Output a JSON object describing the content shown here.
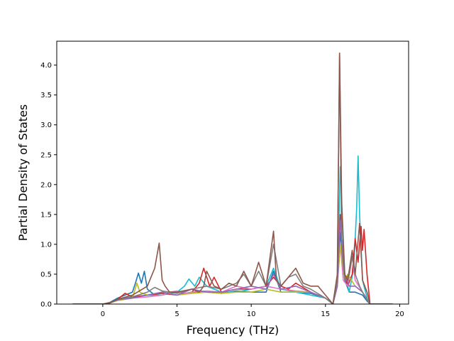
{
  "chart_data": {
    "type": "line",
    "title": "",
    "xlabel": "Frequency (THz)",
    "ylabel": "Partial Density of States",
    "xlim": [
      -3.1,
      20.6
    ],
    "ylim": [
      0.0,
      4.4
    ],
    "xticks": [
      0,
      5,
      10,
      15,
      20
    ],
    "xtick_labels": [
      "0",
      "5",
      "10",
      "15",
      "20"
    ],
    "yticks": [
      0.0,
      0.5,
      1.0,
      1.5,
      2.0,
      2.5,
      3.0,
      3.5,
      4.0
    ],
    "ytick_labels": [
      "0.0",
      "0.5",
      "1.0",
      "1.5",
      "2.0",
      "2.5",
      "3.0",
      "3.5",
      "4.0"
    ],
    "grid": false,
    "legend": "none",
    "series": [
      {
        "color": "#1f77b4",
        "x": [
          -2.0,
          0.0,
          0.5,
          1.0,
          1.5,
          2.0,
          2.2,
          2.4,
          2.6,
          2.8,
          3.0,
          3.5,
          4.0,
          5.0,
          6.0,
          7.0,
          8.0,
          9.0,
          10.0,
          11.0,
          11.5,
          12.0,
          13.0,
          14.0,
          15.0,
          15.5,
          15.8,
          16.0,
          16.3,
          16.6,
          17.0,
          17.5,
          17.8,
          18.0,
          19.5
        ],
        "y": [
          0.0,
          0.0,
          0.03,
          0.1,
          0.15,
          0.2,
          0.35,
          0.52,
          0.35,
          0.55,
          0.25,
          0.15,
          0.2,
          0.15,
          0.2,
          0.2,
          0.18,
          0.22,
          0.2,
          0.2,
          0.55,
          0.2,
          0.2,
          0.18,
          0.1,
          0.0,
          0.3,
          1.2,
          0.4,
          0.2,
          0.2,
          0.15,
          0.05,
          0.0,
          0.0
        ]
      },
      {
        "color": "#17becf",
        "x": [
          -2.0,
          0.0,
          0.5,
          1.0,
          2.0,
          3.0,
          4.0,
          5.0,
          5.5,
          5.8,
          6.2,
          6.5,
          7.0,
          8.0,
          9.0,
          10.0,
          11.0,
          11.5,
          12.0,
          13.0,
          14.0,
          15.0,
          15.5,
          15.8,
          16.0,
          16.3,
          16.6,
          16.9,
          17.1,
          17.2,
          17.3,
          17.5,
          17.8,
          18.0,
          19.5
        ],
        "y": [
          0.0,
          0.0,
          0.02,
          0.08,
          0.12,
          0.15,
          0.15,
          0.2,
          0.3,
          0.42,
          0.3,
          0.45,
          0.3,
          0.2,
          0.2,
          0.25,
          0.3,
          0.6,
          0.25,
          0.2,
          0.15,
          0.1,
          0.0,
          0.3,
          2.3,
          0.5,
          0.2,
          0.6,
          1.6,
          2.48,
          1.5,
          0.4,
          0.1,
          0.0,
          0.0
        ]
      },
      {
        "color": "#d62728",
        "x": [
          -2.0,
          0.0,
          0.5,
          1.0,
          1.5,
          2.0,
          3.0,
          4.0,
          5.0,
          6.0,
          6.5,
          6.8,
          7.2,
          7.5,
          8.0,
          9.0,
          10.0,
          11.0,
          11.5,
          12.0,
          12.5,
          13.0,
          14.0,
          15.0,
          15.5,
          15.8,
          16.0,
          16.2,
          16.5,
          16.8,
          17.0,
          17.2,
          17.4,
          17.5,
          17.6,
          17.8,
          18.0,
          19.5
        ],
        "y": [
          0.0,
          0.0,
          0.02,
          0.08,
          0.18,
          0.12,
          0.15,
          0.18,
          0.15,
          0.2,
          0.35,
          0.6,
          0.3,
          0.45,
          0.2,
          0.25,
          0.25,
          0.3,
          0.45,
          0.3,
          0.25,
          0.35,
          0.2,
          0.1,
          0.0,
          0.4,
          1.5,
          0.6,
          0.3,
          0.5,
          1.1,
          0.7,
          1.3,
          0.9,
          1.25,
          0.5,
          0.0,
          0.0
        ]
      },
      {
        "color": "#e377c2",
        "x": [
          -2.0,
          0.0,
          0.5,
          1.0,
          2.0,
          3.0,
          4.0,
          4.5,
          5.0,
          5.5,
          6.0,
          7.0,
          8.0,
          9.0,
          10.0,
          11.0,
          12.0,
          13.0,
          14.0,
          15.0,
          15.5,
          15.8,
          16.0,
          16.2,
          16.5,
          16.8,
          17.0,
          17.5,
          18.0,
          19.5
        ],
        "y": [
          0.0,
          0.0,
          0.02,
          0.06,
          0.1,
          0.12,
          0.15,
          0.2,
          0.22,
          0.18,
          0.2,
          0.22,
          0.2,
          0.3,
          0.25,
          0.3,
          0.25,
          0.22,
          0.2,
          0.1,
          0.0,
          0.3,
          1.0,
          0.4,
          0.3,
          0.8,
          0.4,
          0.2,
          0.0,
          0.0
        ]
      },
      {
        "color": "#bcbd22",
        "x": [
          -2.0,
          0.0,
          0.5,
          1.0,
          2.0,
          2.3,
          2.5,
          3.0,
          4.0,
          5.0,
          6.0,
          7.0,
          8.0,
          9.0,
          10.0,
          11.0,
          12.0,
          13.0,
          14.0,
          15.0,
          15.5,
          15.8,
          16.0,
          16.3,
          16.5,
          17.0,
          17.5,
          18.0,
          19.5
        ],
        "y": [
          0.0,
          0.0,
          0.02,
          0.06,
          0.1,
          0.35,
          0.2,
          0.15,
          0.2,
          0.15,
          0.18,
          0.2,
          0.18,
          0.2,
          0.2,
          0.25,
          0.2,
          0.2,
          0.2,
          0.1,
          0.0,
          0.3,
          1.0,
          0.4,
          0.5,
          0.3,
          0.2,
          0.0,
          0.0
        ]
      },
      {
        "color": "#9467bd",
        "x": [
          -2.0,
          0.0,
          0.5,
          1.0,
          2.0,
          3.0,
          4.0,
          5.0,
          6.0,
          7.0,
          8.0,
          9.0,
          10.0,
          11.0,
          11.5,
          12.0,
          13.0,
          14.0,
          15.0,
          15.5,
          15.8,
          16.0,
          16.3,
          16.6,
          17.0,
          17.5,
          18.0,
          19.5
        ],
        "y": [
          0.0,
          0.0,
          0.02,
          0.07,
          0.1,
          0.15,
          0.2,
          0.15,
          0.25,
          0.2,
          0.2,
          0.25,
          0.3,
          0.25,
          0.5,
          0.25,
          0.3,
          0.2,
          0.1,
          0.0,
          0.3,
          1.4,
          0.5,
          0.3,
          0.3,
          0.2,
          0.0,
          0.0
        ]
      },
      {
        "color": "#7f7f7f",
        "x": [
          -2.0,
          0.0,
          0.5,
          1.0,
          2.0,
          3.0,
          3.5,
          4.0,
          5.0,
          6.0,
          7.0,
          8.0,
          9.0,
          9.5,
          10.0,
          10.5,
          11.0,
          11.5,
          12.0,
          12.5,
          13.0,
          13.5,
          14.0,
          15.0,
          15.5,
          15.8,
          15.95,
          16.1,
          16.3,
          16.6,
          16.8,
          17.0,
          17.3,
          17.6,
          18.0,
          19.5
        ],
        "y": [
          0.0,
          0.0,
          0.02,
          0.08,
          0.12,
          0.2,
          0.28,
          0.22,
          0.18,
          0.25,
          0.3,
          0.25,
          0.35,
          0.5,
          0.3,
          0.55,
          0.3,
          1.0,
          0.3,
          0.45,
          0.5,
          0.3,
          0.25,
          0.1,
          0.0,
          0.4,
          4.2,
          0.9,
          0.4,
          0.5,
          0.8,
          0.5,
          0.3,
          0.15,
          0.0,
          0.0
        ]
      },
      {
        "color": "#8c564b",
        "x": [
          -2.0,
          0.0,
          0.5,
          1.0,
          2.0,
          3.0,
          3.5,
          3.8,
          4.0,
          4.2,
          4.5,
          5.0,
          6.0,
          6.5,
          6.8,
          7.0,
          7.5,
          8.0,
          8.5,
          9.0,
          9.5,
          10.0,
          10.5,
          11.0,
          11.5,
          11.7,
          12.0,
          12.5,
          13.0,
          13.5,
          14.0,
          14.5,
          15.0,
          15.5,
          15.8,
          15.95,
          16.1,
          16.3,
          16.5,
          16.8,
          17.0,
          17.3,
          17.5,
          17.8,
          18.0,
          19.5
        ],
        "y": [
          0.0,
          0.0,
          0.02,
          0.08,
          0.15,
          0.3,
          0.6,
          1.02,
          0.4,
          0.3,
          0.2,
          0.2,
          0.25,
          0.2,
          0.3,
          0.55,
          0.3,
          0.25,
          0.35,
          0.3,
          0.55,
          0.3,
          0.7,
          0.3,
          1.22,
          0.4,
          0.3,
          0.45,
          0.6,
          0.35,
          0.3,
          0.3,
          0.15,
          0.0,
          0.5,
          4.2,
          1.6,
          0.5,
          0.4,
          0.9,
          0.5,
          1.35,
          0.4,
          0.2,
          0.0,
          0.0
        ]
      }
    ]
  }
}
